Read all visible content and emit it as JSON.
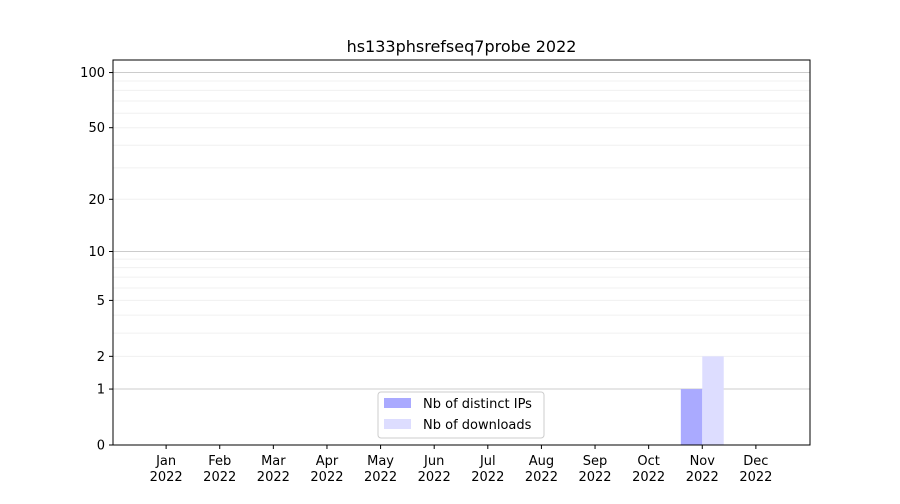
{
  "chart_data": {
    "type": "bar",
    "title": "hs133phsrefseq7probe 2022",
    "xlabel": "",
    "ylabel": "",
    "y_scale": "symlog (log of 1+y)",
    "ylim": [
      0,
      117
    ],
    "y_ticks": [
      0,
      1,
      2,
      5,
      10,
      20,
      50,
      100
    ],
    "y_tick_labels": [
      "0",
      "1",
      "2",
      "5",
      "10",
      "20",
      "50",
      "100"
    ],
    "grid": true,
    "legend_position": "bottom-center",
    "categories": [
      "Jan\n2022",
      "Feb\n2022",
      "Mar\n2022",
      "Apr\n2022",
      "May\n2022",
      "Jun\n2022",
      "Jul\n2022",
      "Aug\n2022",
      "Sep\n2022",
      "Oct\n2022",
      "Nov\n2022",
      "Dec\n2022"
    ],
    "series": [
      {
        "name": "Nb of distinct IPs",
        "color": "#aaaaff",
        "values": [
          0,
          0,
          0,
          0,
          0,
          0,
          0,
          0,
          0,
          0,
          1,
          0
        ]
      },
      {
        "name": "Nb of downloads",
        "color": "#ddddff",
        "values": [
          0,
          0,
          0,
          0,
          0,
          0,
          0,
          0,
          0,
          0,
          2,
          0
        ]
      }
    ]
  }
}
